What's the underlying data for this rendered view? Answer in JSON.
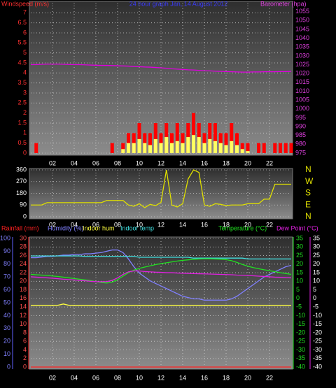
{
  "chart_data": [
    {
      "type": "bar",
      "title": "24 hour graph Jan, 14 August 2012",
      "y_label": "Windspeed (m/s)",
      "y2_label": "Barometer (hpa)",
      "x": [
        0,
        0.5,
        1,
        1.5,
        2,
        2.5,
        3,
        3.5,
        4,
        4.5,
        5,
        5.5,
        6,
        6.5,
        7,
        7.5,
        8,
        8.5,
        9,
        9.5,
        10,
        10.5,
        11,
        11.5,
        12,
        12.5,
        13,
        13.5,
        14,
        14.5,
        15,
        15.5,
        16,
        16.5,
        17,
        17.5,
        18,
        18.5,
        19,
        19.5,
        20,
        20.5,
        21,
        21.5,
        22,
        22.5,
        23,
        23.5,
        24
      ],
      "xlim": [
        0,
        24
      ],
      "xticks": [
        {
          "value": 2,
          "label": "02"
        },
        {
          "value": 4,
          "label": "04"
        },
        {
          "value": 6,
          "label": "06"
        },
        {
          "value": 8,
          "label": "08"
        },
        {
          "value": 10,
          "label": "10"
        },
        {
          "value": 12,
          "label": "12"
        },
        {
          "value": 14,
          "label": "14"
        },
        {
          "value": 16,
          "label": "16"
        },
        {
          "value": 18,
          "label": "18"
        },
        {
          "value": 20,
          "label": "20"
        },
        {
          "value": 22,
          "label": "22"
        }
      ],
      "ylim": [
        0,
        7.5
      ],
      "yticks": [
        0,
        0.5,
        1,
        1.5,
        2,
        2.5,
        3,
        3.5,
        4,
        4.5,
        5,
        5.5,
        6,
        6.5,
        7
      ],
      "y2lim": [
        975,
        1060
      ],
      "y2ticks": [
        975,
        980,
        985,
        990,
        995,
        1000,
        1005,
        1010,
        1015,
        1020,
        1025,
        1030,
        1035,
        1040,
        1045,
        1050,
        1055
      ],
      "grid": true,
      "series": [
        {
          "color": "#ff0000",
          "kind": "bar",
          "axis": "y",
          "values": [
            0,
            0.5,
            0,
            0,
            0,
            0,
            0,
            0,
            0,
            0,
            0,
            0,
            0,
            0,
            0,
            0.5,
            0,
            0.5,
            1,
            1,
            1.5,
            1,
            1,
            1.5,
            1,
            1.5,
            1,
            1.5,
            1,
            1.5,
            2,
            1.5,
            1,
            1.5,
            1.5,
            1,
            1,
            1.5,
            1,
            0.5,
            0.5,
            0,
            0.5,
            0.5,
            0,
            0.5,
            0.5,
            0.5,
            0.5
          ]
        },
        {
          "color": "#ffff60",
          "kind": "bar",
          "axis": "y",
          "values": [
            0,
            0,
            0,
            0,
            0,
            0,
            0,
            0,
            0,
            0,
            0,
            0,
            0,
            0,
            0,
            0,
            0,
            0.2,
            0.5,
            0.5,
            0.7,
            0.5,
            0.4,
            0.7,
            0.5,
            0.8,
            0.5,
            0.6,
            0.5,
            0.8,
            0.9,
            0.8,
            0.5,
            0.7,
            0.6,
            0.5,
            0.4,
            0.6,
            0.4,
            0.2,
            0.1,
            0,
            0,
            0,
            0,
            0,
            0,
            0,
            0
          ]
        },
        {
          "color": "#e000e0",
          "kind": "line",
          "axis": "y2",
          "values": [
            1025,
            1025,
            1025.2,
            1025.3,
            1025.3,
            1025.3,
            1025.2,
            1025.1,
            1025,
            1025,
            1024.9,
            1024.8,
            1024.7,
            1024.6,
            1024.6,
            1024.5,
            1024.4,
            1024.3,
            1024.2,
            1024,
            1023.9,
            1023.7,
            1023.6,
            1023.4,
            1023.2,
            1023,
            1022.7,
            1022.5,
            1022.3,
            1022.1,
            1022,
            1021.8,
            1021.6,
            1021.5,
            1021.3,
            1021.2,
            1021.1,
            1021,
            1020.9,
            1020.8,
            1020.8,
            1020.9,
            1020.9,
            1021,
            1021,
            1021,
            1021.1,
            1021.1,
            1021.2
          ]
        }
      ]
    },
    {
      "type": "line",
      "x": [
        0,
        0.5,
        1,
        1.5,
        2,
        2.5,
        3,
        3.5,
        4,
        4.5,
        5,
        5.5,
        6,
        6.5,
        7,
        7.5,
        8,
        8.5,
        9,
        9.5,
        10,
        10.5,
        11,
        11.5,
        12,
        12.5,
        13,
        13.5,
        14,
        14.5,
        15,
        15.5,
        16,
        16.5,
        17,
        17.5,
        18,
        18.5,
        19,
        19.5,
        20,
        20.5,
        21,
        21.5,
        22,
        22.5,
        23,
        23.5,
        24
      ],
      "xlim": [
        0,
        24
      ],
      "xticks": [
        {
          "value": 2,
          "label": "02"
        },
        {
          "value": 4,
          "label": "04"
        },
        {
          "value": 6,
          "label": "06"
        },
        {
          "value": 8,
          "label": "08"
        },
        {
          "value": 10,
          "label": "10"
        },
        {
          "value": 12,
          "label": "12"
        },
        {
          "value": 14,
          "label": "14"
        },
        {
          "value": 16,
          "label": "16"
        },
        {
          "value": 18,
          "label": "18"
        },
        {
          "value": 20,
          "label": "20"
        },
        {
          "value": 22,
          "label": "22"
        }
      ],
      "ylim": [
        0,
        360
      ],
      "yticks": [
        0,
        90,
        180,
        270,
        360
      ],
      "y2lim": [
        0,
        360
      ],
      "y2ticks": [
        {
          "value": 0,
          "label": "N"
        },
        {
          "value": 90,
          "label": "E"
        },
        {
          "value": 180,
          "label": "S"
        },
        {
          "value": 270,
          "label": "W"
        },
        {
          "value": 360,
          "label": "N"
        }
      ],
      "grid": true,
      "series": [
        {
          "color": "#e0e000",
          "kind": "line",
          "axis": "y",
          "values": [
            90,
            90,
            90,
            108,
            108,
            108,
            108,
            108,
            108,
            108,
            108,
            108,
            108,
            108,
            125,
            125,
            125,
            125,
            90,
            80,
            100,
            70,
            95,
            85,
            110,
            360,
            90,
            75,
            100,
            290,
            360,
            340,
            90,
            80,
            100,
            95,
            85,
            90,
            90,
            90,
            100,
            100,
            100,
            135,
            135,
            250,
            250,
            250,
            250
          ]
        }
      ]
    },
    {
      "type": "line",
      "x": [
        0,
        0.5,
        1,
        1.5,
        2,
        2.5,
        3,
        3.5,
        4,
        4.5,
        5,
        5.5,
        6,
        6.5,
        7,
        7.5,
        8,
        8.5,
        9,
        9.5,
        10,
        10.5,
        11,
        11.5,
        12,
        12.5,
        13,
        13.5,
        14,
        14.5,
        15,
        15.5,
        16,
        16.5,
        17,
        17.5,
        18,
        18.5,
        19,
        19.5,
        20,
        20.5,
        21,
        21.5,
        22,
        22.5,
        23,
        23.5,
        24
      ],
      "xlim": [
        0,
        24
      ],
      "xticks": [
        {
          "value": 2,
          "label": "02"
        },
        {
          "value": 4,
          "label": "04"
        },
        {
          "value": 6,
          "label": "06"
        },
        {
          "value": 8,
          "label": "08"
        },
        {
          "value": 10,
          "label": "10"
        },
        {
          "value": 12,
          "label": "12"
        },
        {
          "value": 14,
          "label": "14"
        },
        {
          "value": 16,
          "label": "16"
        },
        {
          "value": 18,
          "label": "18"
        },
        {
          "value": 20,
          "label": "20"
        },
        {
          "value": 22,
          "label": "22"
        }
      ],
      "ylim": [
        0,
        100
      ],
      "yticks": [
        0,
        10,
        20,
        30,
        40,
        50,
        60,
        70,
        80,
        90,
        100
      ],
      "y3lim": [
        0,
        30
      ],
      "y3ticks": [
        0,
        2,
        4,
        6,
        8,
        10,
        12,
        14,
        16,
        18,
        20,
        22,
        24,
        26,
        28,
        30
      ],
      "y2lim": [
        -40,
        35
      ],
      "y2ticks": [
        -40,
        -35,
        -30,
        -25,
        -20,
        -15,
        -10,
        -5,
        0,
        5,
        10,
        15,
        20,
        25,
        30,
        35
      ],
      "grid": true,
      "series": [
        {
          "name": "Rainfall (mm)",
          "color": "#ff2020",
          "kind": "line",
          "axis": "y3",
          "values": [
            0,
            0,
            0,
            0,
            0,
            0,
            0,
            0,
            0,
            0,
            0,
            0,
            0,
            0,
            0,
            0,
            0,
            0,
            0,
            0,
            0,
            0,
            0,
            0,
            0,
            0,
            0,
            0,
            0,
            0,
            0,
            0,
            0,
            0,
            0,
            0,
            0,
            0,
            0,
            0,
            0,
            0,
            0,
            0,
            0,
            0,
            0,
            0,
            0
          ]
        },
        {
          "name": "Humidity (%)",
          "color": "#8080ff",
          "kind": "line",
          "axis": "y",
          "values": [
            85,
            85,
            85.5,
            86,
            86,
            86.5,
            87,
            87,
            87.5,
            87.5,
            88,
            88,
            88.5,
            89,
            90,
            91,
            91,
            89,
            84,
            78,
            73,
            70,
            67,
            65,
            63,
            61,
            59,
            57,
            55,
            54,
            53,
            53,
            52,
            52,
            52,
            52,
            52,
            53,
            55,
            58,
            61,
            64,
            67,
            70,
            72,
            74,
            76,
            78,
            79
          ]
        },
        {
          "name": "Indoor hum",
          "color": "#ffff40",
          "kind": "line",
          "axis": "y",
          "values": [
            48,
            48,
            48,
            48,
            48,
            48,
            49,
            48,
            48,
            48,
            48,
            48,
            48,
            48,
            48,
            48,
            48,
            48,
            48,
            48,
            48,
            48,
            48,
            48,
            48,
            48,
            48,
            48,
            48,
            48,
            48,
            48,
            48,
            48,
            48,
            48,
            48,
            48,
            48,
            48,
            48,
            48,
            48,
            48,
            48,
            48,
            48,
            48,
            48
          ]
        },
        {
          "name": "Indoor temp",
          "color": "#40e0e0",
          "kind": "line",
          "axis": "y3",
          "values": [
            25.9,
            25.9,
            25.9,
            25.9,
            25.9,
            25.9,
            25.9,
            25.9,
            25.9,
            25.9,
            25.8,
            25.8,
            25.8,
            25.8,
            25.8,
            25.8,
            25.8,
            25.8,
            25.8,
            25.8,
            25.6,
            25.6,
            25.6,
            25.6,
            25.6,
            25.6,
            25.6,
            25.6,
            25.6,
            25.6,
            25.4,
            25.4,
            25.4,
            25.4,
            25.4,
            25.4,
            25.4,
            25.4,
            25.4,
            25.4,
            25.2,
            25.2,
            25.2,
            25.2,
            25.2,
            25.2,
            25.2,
            25.2,
            25.2
          ]
        },
        {
          "name": "Temperature (°C)",
          "color": "#20e020",
          "kind": "line",
          "axis": "y2",
          "values": [
            14,
            13.8,
            13.6,
            13.4,
            13.1,
            12.8,
            12.4,
            12,
            11.6,
            11.2,
            10.8,
            10.4,
            9.8,
            9.3,
            9,
            9.5,
            11,
            13,
            15,
            16.5,
            17.5,
            18.3,
            19,
            19.7,
            20.3,
            20.8,
            21.3,
            21.8,
            22.2,
            22.5,
            22.8,
            23,
            23.1,
            23.1,
            23,
            22.9,
            22.6,
            22,
            21,
            19.8,
            18.8,
            18,
            17.3,
            16.7,
            16.2,
            15.6,
            15,
            14.5,
            14
          ]
        },
        {
          "name": "Dew Point (°C)",
          "color": "#e020e0",
          "kind": "line",
          "axis": "y2",
          "values": [
            12.6,
            12.4,
            12.2,
            12,
            11.8,
            11.5,
            11.2,
            11,
            10.8,
            10.5,
            10.3,
            10,
            9.8,
            9.7,
            9.8,
            10.5,
            12,
            14,
            15.5,
            16,
            16,
            15.7,
            15.5,
            15.3,
            15.2,
            15,
            15,
            14.8,
            14.7,
            14.6,
            14.5,
            14.4,
            14.3,
            14.2,
            14.1,
            14,
            13.9,
            13.8,
            13.6,
            13.5,
            13.4,
            13.2,
            13,
            12.8,
            12.6,
            12.4,
            12.3,
            12.1,
            12
          ]
        }
      ]
    }
  ]
}
